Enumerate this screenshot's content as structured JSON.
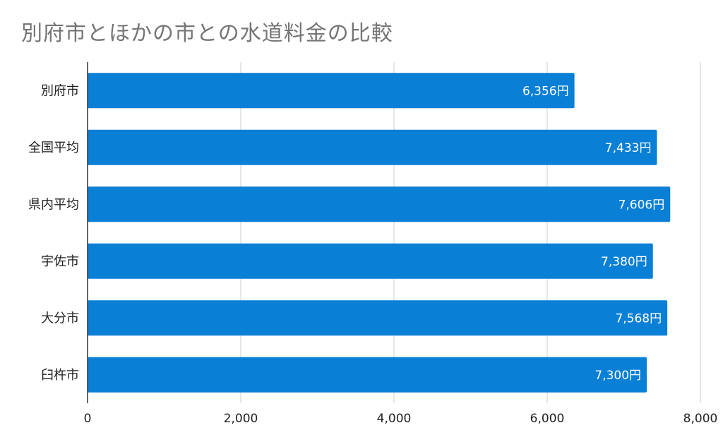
{
  "chart_data": {
    "type": "bar",
    "orientation": "horizontal",
    "title": "別府市とほかの市との水道料金の比較",
    "categories": [
      "別府市",
      "全国平均",
      "県内平均",
      "宇佐市",
      "大分市",
      "臼杵市"
    ],
    "values": [
      6356,
      7433,
      7606,
      7380,
      7568,
      7300
    ],
    "data_labels": [
      "6,356円",
      "7,433円",
      "7,606円",
      "7,380円",
      "7,568円",
      "7,300円"
    ],
    "xlim": [
      0,
      8000
    ],
    "xticks": [
      0,
      2000,
      4000,
      6000,
      8000
    ],
    "xtick_labels": [
      "0",
      "2,000",
      "4,000",
      "6,000",
      "8,000"
    ],
    "xlabel": "",
    "ylabel": "",
    "grid": true,
    "legend": "none",
    "bar_color": "#0a7fd6",
    "grid_color": "#cccccc",
    "title_color": "#757575"
  }
}
